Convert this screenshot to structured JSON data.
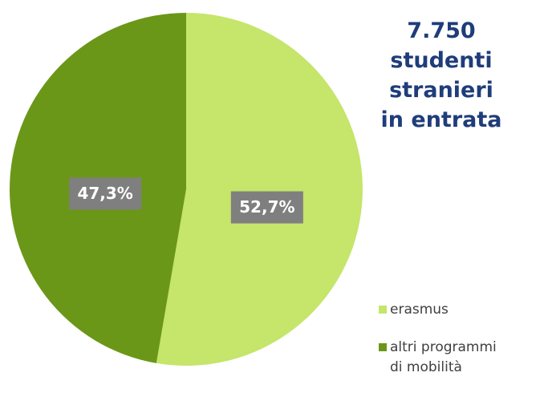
{
  "title_lines": [
    "7.750",
    "studenti",
    "stranieri",
    "in entrata"
  ],
  "chart_data": {
    "type": "pie",
    "slices": [
      {
        "name": "erasmus",
        "value": 52.7,
        "label": "52,7%",
        "color": "#c5e56b"
      },
      {
        "name": "altri programmi di mobilità",
        "value": 47.3,
        "label": "47,3%",
        "color": "#6b9718"
      }
    ],
    "legend": {
      "placement": "bottom-right",
      "entries": [
        {
          "lines": [
            "erasmus"
          ],
          "color": "#c5e56b"
        },
        {
          "lines": [
            "altri programmi",
            "di mobilità"
          ],
          "color": "#6b9718"
        }
      ]
    }
  }
}
